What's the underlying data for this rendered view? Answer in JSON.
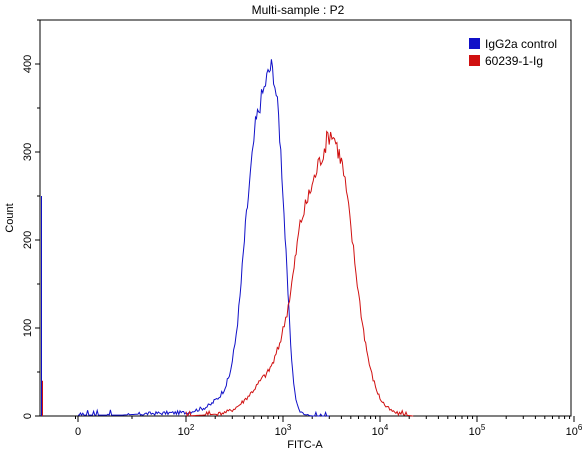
{
  "chart_data": {
    "type": "histogram",
    "title": "Multi-sample : P2",
    "xlabel": "FITC-A",
    "ylabel": "Count",
    "x_scale": "biexponential",
    "ylim": [
      0,
      450
    ],
    "y_ticks": [
      {
        "value": 0,
        "label": "0"
      },
      {
        "value": 100,
        "label": "100"
      },
      {
        "value": 200,
        "label": "200"
      },
      {
        "value": 300,
        "label": "300"
      },
      {
        "value": 400,
        "label": "400"
      }
    ],
    "x_ticks": [
      {
        "value": 0,
        "base": "0",
        "exp": ""
      },
      {
        "value": 100,
        "base": "10",
        "exp": "2"
      },
      {
        "value": 1000,
        "base": "10",
        "exp": "3"
      },
      {
        "value": 10000,
        "base": "10",
        "exp": "4"
      },
      {
        "value": 100000,
        "base": "10",
        "exp": "5"
      },
      {
        "value": 1000000,
        "base": "10",
        "exp": "6"
      }
    ],
    "legend_position": "top-right",
    "grid": false,
    "series": [
      {
        "name": "IgG2a control",
        "color": "#1010c8",
        "points": [
          [
            0,
            1
          ],
          [
            40,
            1
          ],
          [
            70,
            3
          ],
          [
            100,
            4
          ],
          [
            120,
            6
          ],
          [
            140,
            8
          ],
          [
            160,
            10
          ],
          [
            180,
            13
          ],
          [
            200,
            18
          ],
          [
            220,
            22
          ],
          [
            240,
            28
          ],
          [
            260,
            36
          ],
          [
            280,
            46
          ],
          [
            300,
            62
          ],
          [
            320,
            82
          ],
          [
            340,
            108
          ],
          [
            360,
            135
          ],
          [
            380,
            168
          ],
          [
            400,
            200
          ],
          [
            420,
            228
          ],
          [
            440,
            250
          ],
          [
            460,
            272
          ],
          [
            480,
            292
          ],
          [
            500,
            312
          ],
          [
            520,
            330
          ],
          [
            560,
            348
          ],
          [
            600,
            362
          ],
          [
            640,
            372
          ],
          [
            680,
            385
          ],
          [
            720,
            392
          ],
          [
            760,
            398
          ],
          [
            800,
            388
          ],
          [
            850,
            366
          ],
          [
            900,
            340
          ],
          [
            950,
            300
          ],
          [
            1000,
            255
          ],
          [
            1050,
            205
          ],
          [
            1100,
            160
          ],
          [
            1150,
            118
          ],
          [
            1200,
            82
          ],
          [
            1260,
            50
          ],
          [
            1320,
            28
          ],
          [
            1400,
            12
          ],
          [
            1500,
            5
          ],
          [
            1600,
            2
          ],
          [
            1800,
            1
          ],
          [
            2000,
            0
          ],
          [
            3000,
            0
          ]
        ]
      },
      {
        "name": "60239-1-Ig",
        "color": "#d01010",
        "points": [
          [
            100,
            0
          ],
          [
            150,
            1
          ],
          [
            200,
            2
          ],
          [
            250,
            4
          ],
          [
            300,
            7
          ],
          [
            350,
            12
          ],
          [
            400,
            18
          ],
          [
            450,
            24
          ],
          [
            500,
            30
          ],
          [
            550,
            36
          ],
          [
            600,
            42
          ],
          [
            700,
            50
          ],
          [
            800,
            62
          ],
          [
            900,
            78
          ],
          [
            1000,
            98
          ],
          [
            1100,
            118
          ],
          [
            1200,
            142
          ],
          [
            1300,
            168
          ],
          [
            1400,
            195
          ],
          [
            1500,
            218
          ],
          [
            1700,
            238
          ],
          [
            1900,
            255
          ],
          [
            2100,
            270
          ],
          [
            2300,
            285
          ],
          [
            2600,
            300
          ],
          [
            2900,
            318
          ],
          [
            3200,
            322
          ],
          [
            3500,
            312
          ],
          [
            3800,
            298
          ],
          [
            4100,
            285
          ],
          [
            4500,
            255
          ],
          [
            5000,
            215
          ],
          [
            5500,
            175
          ],
          [
            6000,
            140
          ],
          [
            6600,
            105
          ],
          [
            7300,
            75
          ],
          [
            8000,
            52
          ],
          [
            9000,
            33
          ],
          [
            10000,
            20
          ],
          [
            11500,
            11
          ],
          [
            13000,
            6
          ],
          [
            15000,
            3
          ],
          [
            18000,
            1
          ],
          [
            22000,
            0
          ]
        ]
      }
    ]
  }
}
